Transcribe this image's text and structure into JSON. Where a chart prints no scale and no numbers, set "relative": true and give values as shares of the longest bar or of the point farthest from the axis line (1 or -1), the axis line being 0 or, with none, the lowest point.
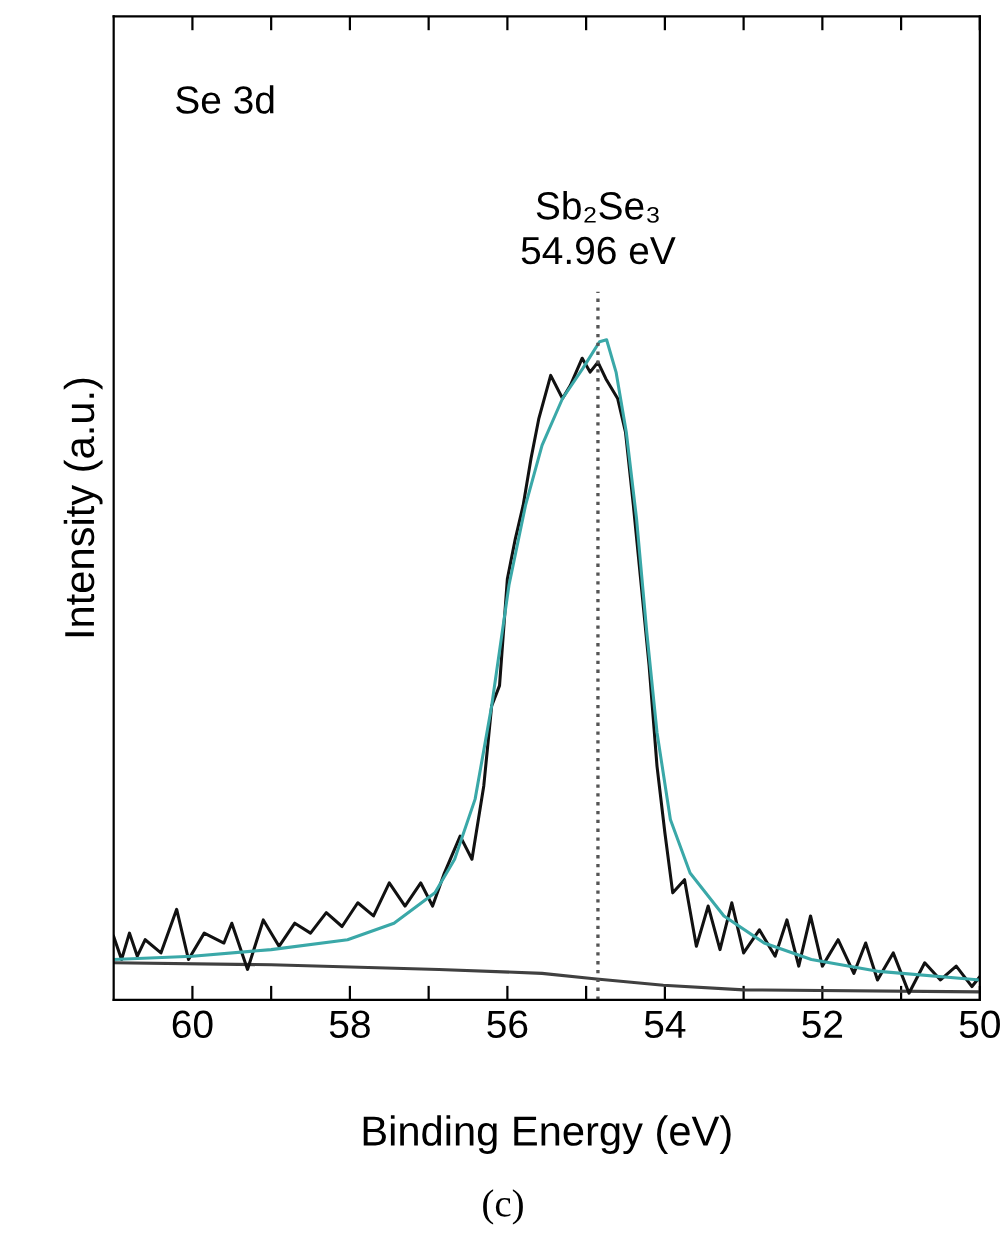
{
  "chart_data": {
    "type": "line",
    "relative": true,
    "xlabel": "Binding Energy (eV)",
    "ylabel": "Intensity (a.u.)",
    "annotations": [
      "Se 3d",
      "(c)"
    ],
    "xlim": [
      61,
      50
    ],
    "xticks": [
      60,
      {
        "value": 59,
        "label": null
      },
      58,
      {
        "value": 57,
        "label": null
      },
      56,
      {
        "value": 55,
        "label": null
      },
      54,
      {
        "value": 53,
        "label": null
      },
      52,
      {
        "value": 51,
        "label": null
      },
      50
    ],
    "ref_lines": [
      {
        "axis": "x",
        "value": 54.85,
        "label": "Sb₂Se₃\n54.96 eV",
        "line_style": "dotted",
        "color": "#555555"
      }
    ],
    "grid": false,
    "legend": false,
    "series": [
      {
        "color": "#404040",
        "x": [
          61,
          59,
          56.87,
          55.56,
          54.9,
          54.02,
          53.0,
          50
        ],
        "values": [
          0.056,
          0.053,
          0.046,
          0.04,
          0.032,
          0.022,
          0.015,
          0.012
        ]
      },
      {
        "color": "#111111",
        "x": [
          61,
          60.9,
          60.8,
          60.7,
          60.6,
          60.4,
          60.2,
          60.05,
          59.85,
          59.6,
          59.5,
          59.3,
          59.1,
          58.9,
          58.7,
          58.5,
          58.3,
          58.1,
          57.9,
          57.7,
          57.5,
          57.3,
          57.1,
          56.95,
          56.8,
          56.6,
          56.45,
          56.3,
          56.2,
          56.1,
          56.0,
          55.9,
          55.8,
          55.7,
          55.6,
          55.45,
          55.3,
          55.2,
          55.05,
          54.95,
          54.85,
          54.75,
          54.6,
          54.5,
          54.4,
          54.3,
          54.2,
          54.1,
          54.0,
          53.9,
          53.75,
          53.6,
          53.45,
          53.3,
          53.15,
          53.0,
          52.8,
          52.6,
          52.45,
          52.3,
          52.15,
          52.0,
          51.8,
          51.6,
          51.45,
          51.3,
          51.1,
          50.9,
          50.7,
          50.5,
          50.3,
          50.1,
          50.0
        ],
        "values": [
          0.096,
          0.061,
          0.101,
          0.066,
          0.091,
          0.071,
          0.137,
          0.061,
          0.101,
          0.086,
          0.116,
          0.046,
          0.121,
          0.081,
          0.116,
          0.101,
          0.132,
          0.111,
          0.147,
          0.127,
          0.177,
          0.142,
          0.177,
          0.142,
          0.192,
          0.248,
          0.213,
          0.324,
          0.445,
          0.476,
          0.638,
          0.698,
          0.749,
          0.82,
          0.881,
          0.946,
          0.911,
          0.931,
          0.972,
          0.951,
          0.966,
          0.941,
          0.911,
          0.86,
          0.749,
          0.628,
          0.506,
          0.354,
          0.253,
          0.162,
          0.182,
          0.081,
          0.142,
          0.076,
          0.147,
          0.071,
          0.106,
          0.066,
          0.121,
          0.051,
          0.127,
          0.051,
          0.091,
          0.04,
          0.086,
          0.03,
          0.071,
          0.01,
          0.056,
          0.03,
          0.051,
          0.02,
          0.035
        ]
      },
      {
        "color": "#3aa8a8",
        "x": [
          61,
          60,
          59,
          58.03,
          57.44,
          56.92,
          56.67,
          56.41,
          56.2,
          55.98,
          55.77,
          55.56,
          55.3,
          55.04,
          54.83,
          54.74,
          54.62,
          54.49,
          54.36,
          54.23,
          54.1,
          53.93,
          53.68,
          53.25,
          52.74,
          52.14,
          51.28,
          50
        ],
        "values": [
          0.061,
          0.066,
          0.076,
          0.091,
          0.116,
          0.162,
          0.213,
          0.304,
          0.445,
          0.628,
          0.749,
          0.84,
          0.911,
          0.957,
          0.997,
          1.0,
          0.951,
          0.86,
          0.729,
          0.557,
          0.405,
          0.273,
          0.192,
          0.127,
          0.086,
          0.061,
          0.043,
          0.03
        ]
      }
    ]
  }
}
